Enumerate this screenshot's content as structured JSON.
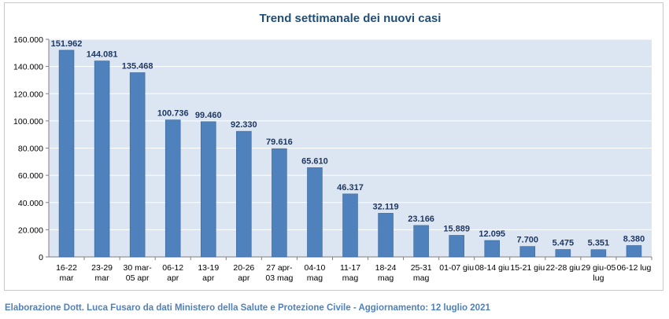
{
  "footer": "Elaborazione Dott. Luca Fusaro da dati Ministero della Salute e Protezione Civile - Aggiornamento: 12 luglio 2021",
  "colors": {
    "bar": "#4f81bd",
    "bar_border": "#3a6599",
    "title": "#1f4e79",
    "label": "#1f3864",
    "plot_bg": "#dce6f2",
    "grid": "#ffffff",
    "axis_text": "#000000"
  },
  "chart_data": {
    "type": "bar",
    "title": "Trend settimanale dei nuovi casi",
    "xlabel": "",
    "ylabel": "",
    "ylim": [
      0,
      160000
    ],
    "yticks": [
      0,
      20000,
      40000,
      60000,
      80000,
      100000,
      120000,
      140000,
      160000
    ],
    "ytick_labels": [
      "0",
      "20.000",
      "40.000",
      "60.000",
      "80.000",
      "100.000",
      "120.000",
      "140.000",
      "160.000"
    ],
    "grid": true,
    "legend": "none",
    "categories": [
      [
        "16-22",
        "mar"
      ],
      [
        "23-29",
        "mar"
      ],
      [
        "30 mar-",
        "05 apr"
      ],
      [
        "06-12",
        "apr"
      ],
      [
        "13-19",
        "apr"
      ],
      [
        "20-26",
        "apr"
      ],
      [
        "27 apr-",
        "03 mag"
      ],
      [
        "04-10",
        "mag"
      ],
      [
        "11-17",
        "mag"
      ],
      [
        "18-24",
        "mag"
      ],
      [
        "25-31",
        "mag"
      ],
      [
        "01-07 giu"
      ],
      [
        "08-14 giu"
      ],
      [
        "15-21 giu"
      ],
      [
        "22-28 giu"
      ],
      [
        "29 giu-05",
        "lug"
      ],
      [
        "06-12 lug"
      ]
    ],
    "values": [
      151962,
      144081,
      135468,
      100736,
      99460,
      92330,
      79616,
      65610,
      46317,
      32119,
      23166,
      15889,
      12095,
      7700,
      5475,
      5351,
      8380
    ],
    "data_labels": [
      "151.962",
      "144.081",
      "135.468",
      "100.736",
      "99.460",
      "92.330",
      "79.616",
      "65.610",
      "46.317",
      "32.119",
      "23.166",
      "15.889",
      "12.095",
      "7.700",
      "5.475",
      "5.351",
      "8.380"
    ]
  }
}
